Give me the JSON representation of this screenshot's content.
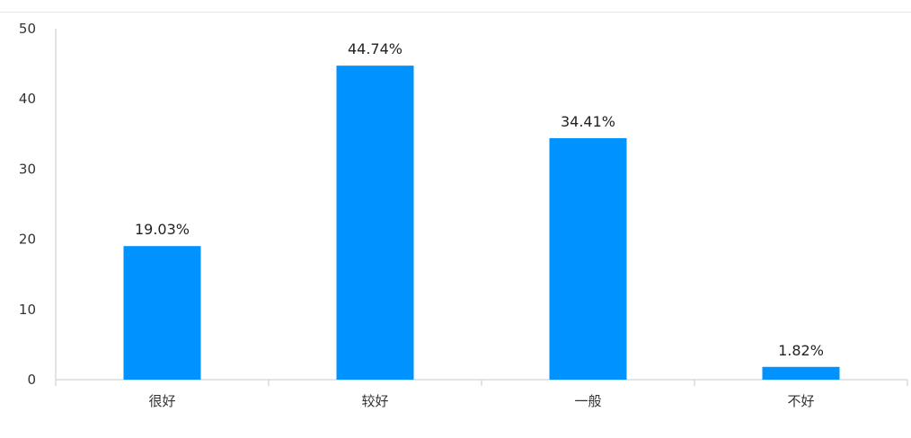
{
  "chart_data": {
    "type": "bar",
    "categories": [
      "很好",
      "较好",
      "一般",
      "不好"
    ],
    "values": [
      19.03,
      44.74,
      34.41,
      1.82
    ],
    "data_labels": [
      "19.03%",
      "44.74%",
      "34.41%",
      "1.82%"
    ],
    "title": "",
    "xlabel": "",
    "ylabel": "",
    "ylim": [
      0,
      50
    ],
    "yticks": [
      0,
      10,
      20,
      30,
      40,
      50
    ],
    "grid": false,
    "bar_color": "#0093ff",
    "axis_color": "#c8c8c8"
  }
}
